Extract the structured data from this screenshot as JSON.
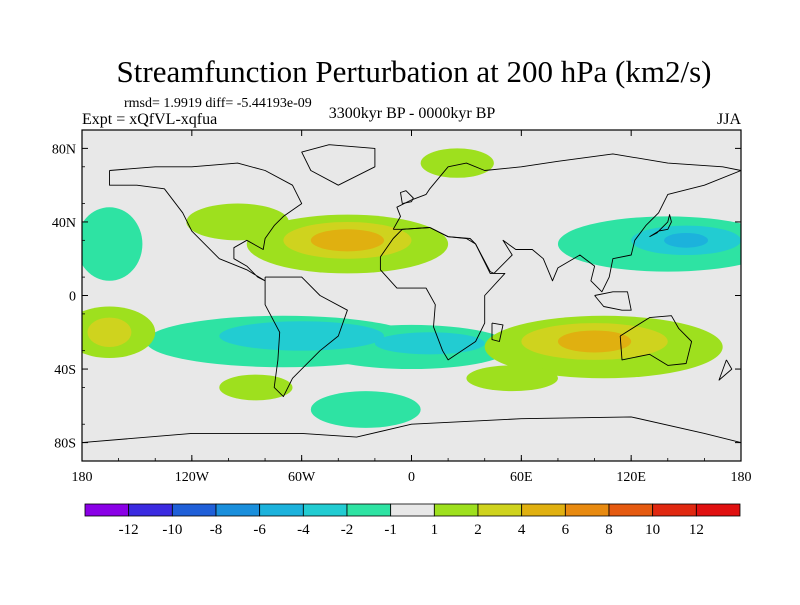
{
  "chart_data": {
    "type": "heatmap",
    "title": "Streamfunction Perturbation at 200 hPa (km2/s)",
    "subtitle_stats": "rmsd= 1.9919 diff= -5.44193e-09",
    "left_label": "Expt = xQfVL-xqfua",
    "center_label": "3300kyr BP - 0000kyr BP",
    "right_label": "JJA",
    "projection": "cylindrical equidistant",
    "xlim": [
      -180,
      180
    ],
    "ylim": [
      -90,
      90
    ],
    "x_ticks": [
      {
        "value": -180,
        "label": "180"
      },
      {
        "value": -120,
        "label": "120W"
      },
      {
        "value": -60,
        "label": "60W"
      },
      {
        "value": 0,
        "label": "0"
      },
      {
        "value": 60,
        "label": "60E"
      },
      {
        "value": 120,
        "label": "120E"
      },
      {
        "value": 180,
        "label": "180"
      }
    ],
    "y_ticks": [
      {
        "value": 80,
        "label": "80N"
      },
      {
        "value": 40,
        "label": "40N"
      },
      {
        "value": 0,
        "label": "0"
      },
      {
        "value": -40,
        "label": "40S"
      },
      {
        "value": -80,
        "label": "80S"
      }
    ],
    "colorbar": {
      "labels": [
        "-12",
        "-10",
        "-8",
        "-6",
        "-4",
        "-2",
        "-1",
        "1",
        "2",
        "4",
        "6",
        "8",
        "10",
        "12"
      ],
      "colors": [
        "#8a00e6",
        "#3b2ae0",
        "#1f5fd8",
        "#1a8fdc",
        "#1cb2dc",
        "#22ccd2",
        "#2ee3a3",
        "#e8e8e8",
        "#9ee01e",
        "#cfd31e",
        "#e0b010",
        "#e88a10",
        "#e55a10",
        "#e02810",
        "#e01010"
      ]
    },
    "contour_regions": [
      {
        "level": "-2",
        "color": "#2ee3a3",
        "lon": -70,
        "lat": -25,
        "r_lon": 75,
        "r_lat": 14
      },
      {
        "level": "-2",
        "color": "#2ee3a3",
        "lon": 0,
        "lat": -28,
        "r_lon": 55,
        "r_lat": 12
      },
      {
        "level": "-2",
        "color": "#2ee3a3",
        "lon": 140,
        "lat": 28,
        "r_lon": 60,
        "r_lat": 15
      },
      {
        "level": "-2",
        "color": "#2ee3a3",
        "lon": -165,
        "lat": 28,
        "r_lon": 18,
        "r_lat": 20
      },
      {
        "level": "-2",
        "color": "#2ee3a3",
        "lon": -25,
        "lat": -62,
        "r_lon": 30,
        "r_lat": 10
      },
      {
        "level": "-4",
        "color": "#22ccd2",
        "lon": -60,
        "lat": -22,
        "r_lon": 45,
        "r_lat": 8
      },
      {
        "level": "-4",
        "color": "#22ccd2",
        "lon": 10,
        "lat": -26,
        "r_lon": 30,
        "r_lat": 6
      },
      {
        "level": "-4",
        "color": "#22ccd2",
        "lon": 150,
        "lat": 30,
        "r_lon": 30,
        "r_lat": 8
      },
      {
        "level": "-6",
        "color": "#1cb2dc",
        "lon": 150,
        "lat": 30,
        "r_lon": 12,
        "r_lat": 4
      },
      {
        "level": "2",
        "color": "#9ee01e",
        "lon": -35,
        "lat": 28,
        "r_lon": 55,
        "r_lat": 16
      },
      {
        "level": "2",
        "color": "#9ee01e",
        "lon": 105,
        "lat": -28,
        "r_lon": 65,
        "r_lat": 17
      },
      {
        "level": "2",
        "color": "#9ee01e",
        "lon": -165,
        "lat": -20,
        "r_lon": 25,
        "r_lat": 14
      },
      {
        "level": "2",
        "color": "#9ee01e",
        "lon": -95,
        "lat": 40,
        "r_lon": 28,
        "r_lat": 10
      },
      {
        "level": "2",
        "color": "#9ee01e",
        "lon": 25,
        "lat": 72,
        "r_lon": 20,
        "r_lat": 8
      },
      {
        "level": "2",
        "color": "#9ee01e",
        "lon": -85,
        "lat": -50,
        "r_lon": 20,
        "r_lat": 7
      },
      {
        "level": "2",
        "color": "#9ee01e",
        "lon": 55,
        "lat": -45,
        "r_lon": 25,
        "r_lat": 7
      },
      {
        "level": "4",
        "color": "#cfd31e",
        "lon": -35,
        "lat": 30,
        "r_lon": 35,
        "r_lat": 10
      },
      {
        "level": "4",
        "color": "#cfd31e",
        "lon": 100,
        "lat": -25,
        "r_lon": 40,
        "r_lat": 10
      },
      {
        "level": "4",
        "color": "#cfd31e",
        "lon": -165,
        "lat": -20,
        "r_lon": 12,
        "r_lat": 8
      },
      {
        "level": "6",
        "color": "#e0b010",
        "lon": -35,
        "lat": 30,
        "r_lon": 20,
        "r_lat": 6
      },
      {
        "level": "6",
        "color": "#e0b010",
        "lon": 100,
        "lat": -25,
        "r_lon": 20,
        "r_lat": 6
      }
    ],
    "coastlines": [
      [
        [
          -165,
          68
        ],
        [
          -140,
          70
        ],
        [
          -120,
          70
        ],
        [
          -95,
          72
        ],
        [
          -80,
          68
        ],
        [
          -65,
          60
        ],
        [
          -60,
          50
        ],
        [
          -70,
          43
        ],
        [
          -75,
          38
        ],
        [
          -80,
          31
        ],
        [
          -81,
          25
        ],
        [
          -90,
          30
        ],
        [
          -97,
          26
        ],
        [
          -97,
          20
        ],
        [
          -90,
          16
        ],
        [
          -84,
          10
        ],
        [
          -80,
          8
        ],
        [
          -90,
          14
        ],
        [
          -105,
          20
        ],
        [
          -115,
          30
        ],
        [
          -120,
          35
        ],
        [
          -125,
          45
        ],
        [
          -135,
          58
        ],
        [
          -150,
          60
        ],
        [
          -165,
          60
        ],
        [
          -165,
          68
        ]
      ],
      [
        [
          -45,
          82
        ],
        [
          -20,
          80
        ],
        [
          -20,
          70
        ],
        [
          -40,
          60
        ],
        [
          -55,
          68
        ],
        [
          -60,
          78
        ],
        [
          -45,
          82
        ]
      ],
      [
        [
          -80,
          10
        ],
        [
          -60,
          10
        ],
        [
          -50,
          0
        ],
        [
          -35,
          -8
        ],
        [
          -40,
          -22
        ],
        [
          -50,
          -30
        ],
        [
          -58,
          -38
        ],
        [
          -65,
          -45
        ],
        [
          -70,
          -55
        ],
        [
          -75,
          -50
        ],
        [
          -73,
          -35
        ],
        [
          -72,
          -20
        ],
        [
          -80,
          -5
        ],
        [
          -80,
          10
        ]
      ],
      [
        [
          -10,
          36
        ],
        [
          -6,
          43
        ],
        [
          -8,
          48
        ],
        [
          0,
          52
        ],
        [
          8,
          55
        ],
        [
          10,
          58
        ],
        [
          20,
          70
        ],
        [
          30,
          72
        ],
        [
          40,
          68
        ],
        [
          60,
          70
        ],
        [
          80,
          73
        ],
        [
          110,
          77
        ],
        [
          140,
          72
        ],
        [
          170,
          70
        ],
        [
          180,
          68
        ],
        [
          160,
          60
        ],
        [
          140,
          55
        ],
        [
          135,
          45
        ],
        [
          128,
          38
        ],
        [
          122,
          30
        ],
        [
          120,
          22
        ],
        [
          110,
          20
        ],
        [
          108,
          10
        ],
        [
          104,
          2
        ],
        [
          98,
          8
        ],
        [
          100,
          16
        ],
        [
          92,
          22
        ],
        [
          80,
          15
        ],
        [
          77,
          8
        ],
        [
          72,
          20
        ],
        [
          66,
          25
        ],
        [
          57,
          25
        ],
        [
          50,
          30
        ],
        [
          55,
          22
        ],
        [
          45,
          12
        ],
        [
          43,
          13
        ],
        [
          35,
          28
        ],
        [
          30,
          31
        ],
        [
          20,
          32
        ],
        [
          10,
          37
        ],
        [
          -5,
          36
        ],
        [
          -10,
          36
        ]
      ],
      [
        [
          -17,
          21
        ],
        [
          -10,
          31
        ],
        [
          -5,
          36
        ],
        [
          10,
          37
        ],
        [
          20,
          32
        ],
        [
          32,
          31
        ],
        [
          35,
          28
        ],
        [
          43,
          12
        ],
        [
          51,
          12
        ],
        [
          40,
          0
        ],
        [
          40,
          -15
        ],
        [
          35,
          -25
        ],
        [
          20,
          -35
        ],
        [
          17,
          -30
        ],
        [
          12,
          -17
        ],
        [
          13,
          -5
        ],
        [
          8,
          4
        ],
        [
          -8,
          4
        ],
        [
          -17,
          14
        ],
        [
          -17,
          21
        ]
      ],
      [
        [
          114,
          -22
        ],
        [
          130,
          -12
        ],
        [
          142,
          -11
        ],
        [
          146,
          -18
        ],
        [
          153,
          -25
        ],
        [
          150,
          -37
        ],
        [
          140,
          -38
        ],
        [
          130,
          -32
        ],
        [
          115,
          -35
        ],
        [
          114,
          -22
        ]
      ],
      [
        [
          -180,
          -80
        ],
        [
          -120,
          -75
        ],
        [
          -60,
          -75
        ],
        [
          -30,
          -77
        ],
        [
          0,
          -70
        ],
        [
          60,
          -67
        ],
        [
          120,
          -66
        ],
        [
          160,
          -75
        ],
        [
          180,
          -80
        ]
      ],
      [
        [
          130,
          32
        ],
        [
          135,
          35
        ],
        [
          140,
          36
        ],
        [
          142,
          40
        ],
        [
          141,
          44
        ],
        [
          140,
          40
        ],
        [
          134,
          34
        ],
        [
          130,
          32
        ]
      ],
      [
        [
          -5,
          50
        ],
        [
          0,
          51
        ],
        [
          1,
          53
        ],
        [
          -3,
          57
        ],
        [
          -6,
          56
        ],
        [
          -5,
          50
        ]
      ],
      [
        [
          44,
          -15
        ],
        [
          50,
          -16
        ],
        [
          48,
          -25
        ],
        [
          44,
          -24
        ],
        [
          44,
          -15
        ]
      ],
      [
        [
          100,
          0
        ],
        [
          105,
          -6
        ],
        [
          115,
          -8
        ],
        [
          120,
          -8
        ],
        [
          118,
          2
        ],
        [
          110,
          2
        ],
        [
          100,
          0
        ]
      ],
      [
        [
          172,
          -35
        ],
        [
          175,
          -40
        ],
        [
          168,
          -46
        ],
        [
          172,
          -35
        ]
      ]
    ]
  }
}
